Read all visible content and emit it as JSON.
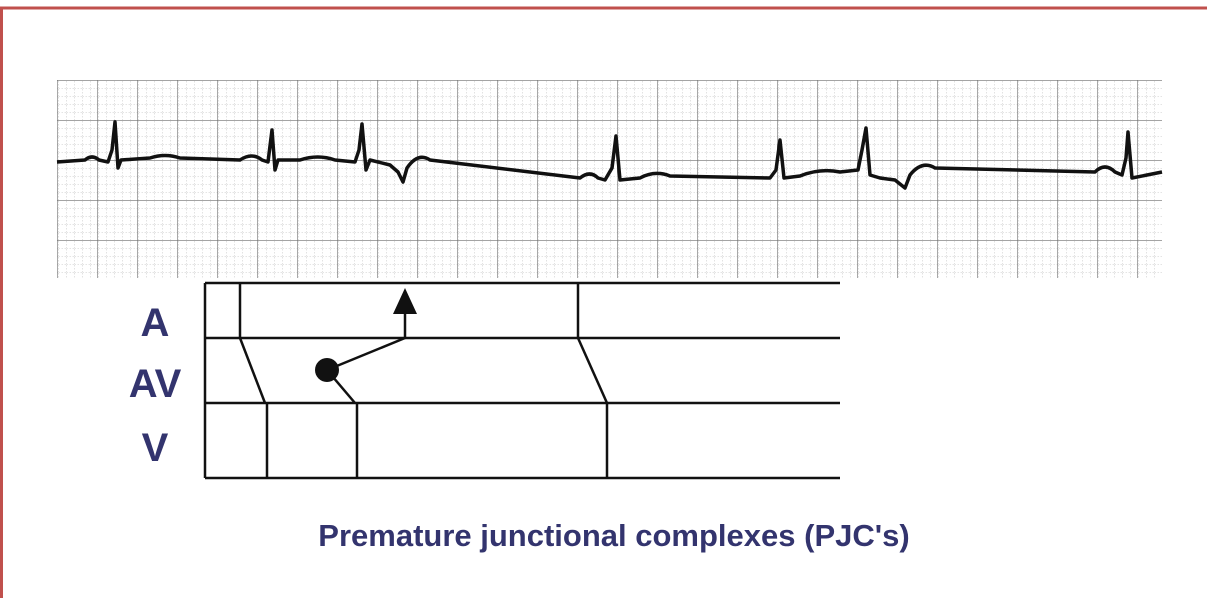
{
  "ladder": {
    "labels": [
      "A",
      "AV",
      "V"
    ]
  },
  "caption": "Premature junctional complexes (PJC's)"
}
